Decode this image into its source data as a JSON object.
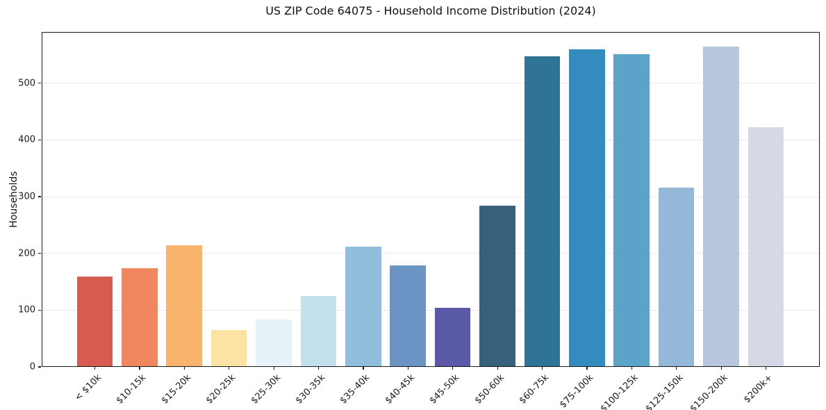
{
  "title": "US ZIP Code 64075 - Household Income Distribution (2024)",
  "chart_data": {
    "type": "bar",
    "title": "US ZIP Code 64075 - Household Income Distribution (2024)",
    "xlabel": "",
    "ylabel": "Households",
    "categories": [
      "< $10k",
      "$10-15k",
      "$15-20k",
      "$20-25k",
      "$25-30k",
      "$30-35k",
      "$35-40k",
      "$40-45k",
      "$45-50k",
      "$50-60k",
      "$60-75k",
      "$75-100k",
      "$100-125k",
      "$125-150k",
      "$150-200k",
      "$200k+"
    ],
    "values": [
      159,
      174,
      215,
      65,
      84,
      125,
      212,
      179,
      104,
      284,
      547,
      560,
      551,
      316,
      564,
      423
    ],
    "bar_colors": [
      "#d65c51",
      "#f0875f",
      "#f8b36d",
      "#fce3a3",
      "#e6f2f7",
      "#c3e1ed",
      "#92bedd",
      "#6b93c4",
      "#5a59a7",
      "#38607a",
      "#2f7396",
      "#348bbd",
      "#5ba3c9",
      "#93b8da",
      "#b6c7de",
      "#d7d8e6"
    ],
    "yticks": [
      0,
      100,
      200,
      300,
      400,
      500
    ],
    "ylim": [
      0,
      590
    ],
    "grid": "horizontal",
    "legend_position": "none"
  }
}
